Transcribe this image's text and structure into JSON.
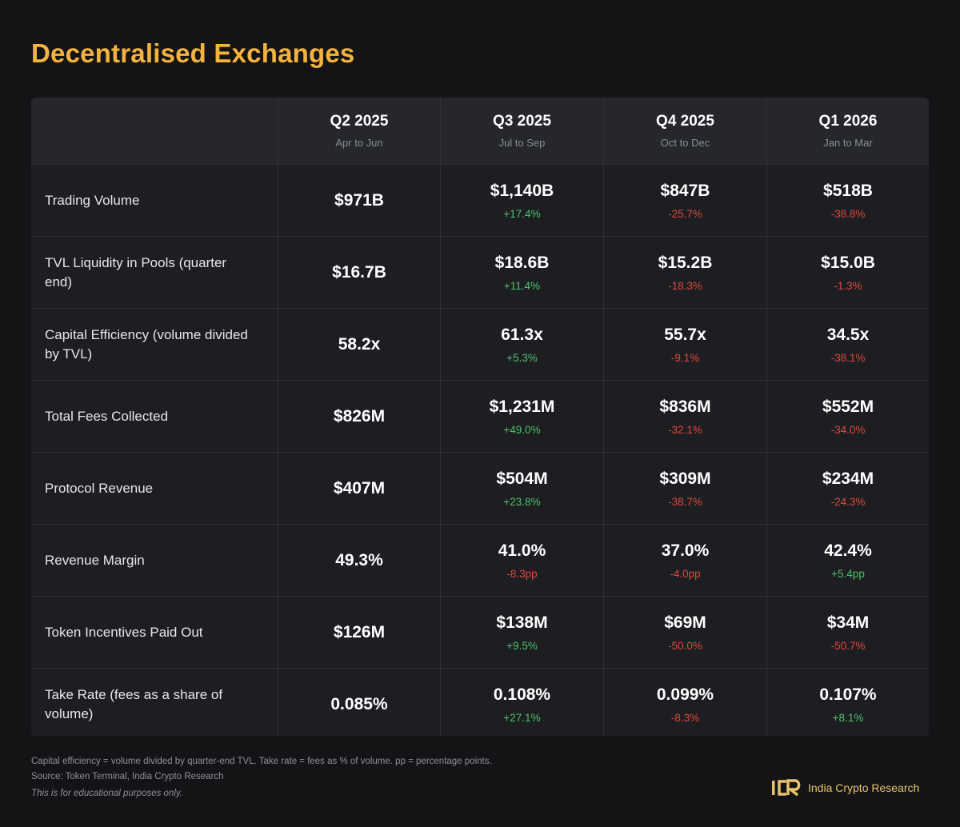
{
  "title": "Decentralised Exchanges",
  "columns": [
    {
      "quarter": "Q2 2025",
      "range": "Apr to Jun"
    },
    {
      "quarter": "Q3 2025",
      "range": "Jul to Sep"
    },
    {
      "quarter": "Q4 2025",
      "range": "Oct to Dec"
    },
    {
      "quarter": "Q1 2026",
      "range": "Jan to Mar"
    }
  ],
  "rows": [
    {
      "metric": "Trading Volume",
      "values": [
        {
          "value": "$971B",
          "change": ""
        },
        {
          "value": "$1,140B",
          "change": "+17.4%"
        },
        {
          "value": "$847B",
          "change": "-25.7%"
        },
        {
          "value": "$518B",
          "change": "-38.8%"
        }
      ]
    },
    {
      "metric": "TVL Liquidity in Pools (quarter end)",
      "values": [
        {
          "value": "$16.7B",
          "change": ""
        },
        {
          "value": "$18.6B",
          "change": "+11.4%"
        },
        {
          "value": "$15.2B",
          "change": "-18.3%"
        },
        {
          "value": "$15.0B",
          "change": "-1.3%"
        }
      ]
    },
    {
      "metric": "Capital Efficiency (volume divided by TVL)",
      "values": [
        {
          "value": "58.2x",
          "change": ""
        },
        {
          "value": "61.3x",
          "change": "+5.3%"
        },
        {
          "value": "55.7x",
          "change": "-9.1%"
        },
        {
          "value": "34.5x",
          "change": "-38.1%"
        }
      ]
    },
    {
      "metric": "Total Fees Collected",
      "values": [
        {
          "value": "$826M",
          "change": ""
        },
        {
          "value": "$1,231M",
          "change": "+49.0%"
        },
        {
          "value": "$836M",
          "change": "-32.1%"
        },
        {
          "value": "$552M",
          "change": "-34.0%"
        }
      ]
    },
    {
      "metric": "Protocol Revenue",
      "values": [
        {
          "value": "$407M",
          "change": ""
        },
        {
          "value": "$504M",
          "change": "+23.8%"
        },
        {
          "value": "$309M",
          "change": "-38.7%"
        },
        {
          "value": "$234M",
          "change": "-24.3%"
        }
      ]
    },
    {
      "metric": "Revenue Margin",
      "values": [
        {
          "value": "49.3%",
          "change": ""
        },
        {
          "value": "41.0%",
          "change": "-8.3pp"
        },
        {
          "value": "37.0%",
          "change": "-4.0pp"
        },
        {
          "value": "42.4%",
          "change": "+5.4pp"
        }
      ]
    },
    {
      "metric": "Token Incentives Paid Out",
      "values": [
        {
          "value": "$126M",
          "change": ""
        },
        {
          "value": "$138M",
          "change": "+9.5%"
        },
        {
          "value": "$69M",
          "change": "-50.0%"
        },
        {
          "value": "$34M",
          "change": "-50.7%"
        }
      ]
    },
    {
      "metric": "Take Rate (fees as a share of volume)",
      "values": [
        {
          "value": "0.085%",
          "change": ""
        },
        {
          "value": "0.108%",
          "change": "+27.1%"
        },
        {
          "value": "0.099%",
          "change": "-8.3%"
        },
        {
          "value": "0.107%",
          "change": "+8.1%"
        }
      ]
    }
  ],
  "footer": {
    "note": "Capital efficiency = volume divided by quarter-end TVL. Take rate = fees as % of volume. pp = percentage points.",
    "source": "Source: Token Terminal, India Crypto Research",
    "disclaimer": "This is for educational purposes only."
  },
  "brand": {
    "logo_text": "ICR",
    "name": "India Crypto Research"
  },
  "colors": {
    "background": "#141416",
    "title": "#f4b33e",
    "positive": "#4fc06a",
    "negative": "#e2473d",
    "brand": "#e7c46c"
  }
}
